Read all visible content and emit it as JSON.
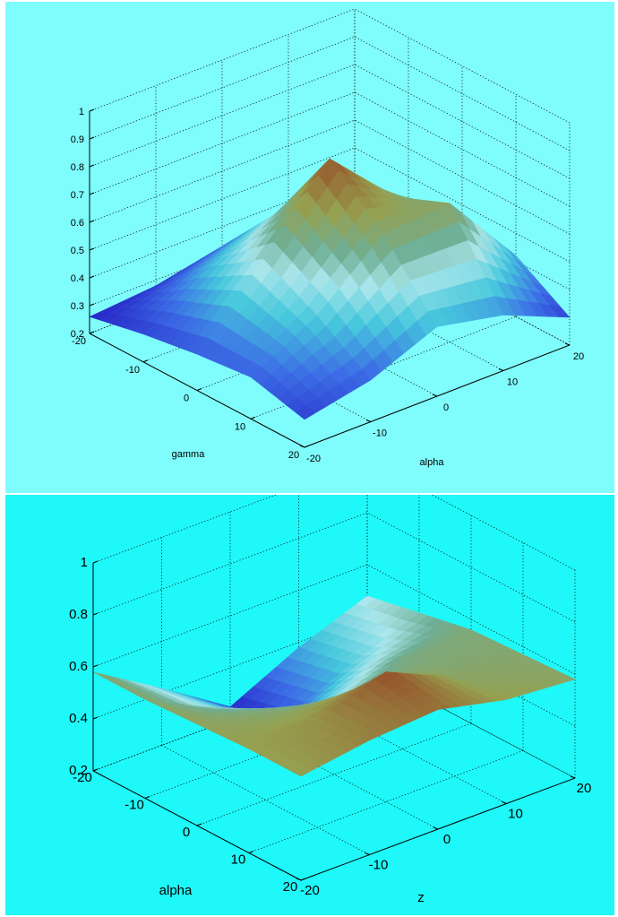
{
  "colors": {
    "top_panel_bg": "#7ffcfc",
    "bottom_panel_bg": "#1ef8f8"
  },
  "chart_data": [
    {
      "type": "surface",
      "xlabel": "gamma",
      "ylabel": "alpha",
      "zlabel": "",
      "xlim": [
        -20,
        20
      ],
      "ylim": [
        -20,
        20
      ],
      "zlim": [
        0.2,
        1
      ],
      "x_ticks": [
        "-20",
        "-10",
        "0",
        "10",
        "20"
      ],
      "y_ticks": [
        "-20",
        "-10",
        "0",
        "10",
        "20"
      ],
      "z_ticks": [
        "0.2",
        "0.3",
        "0.4",
        "0.5",
        "0.6",
        "0.7",
        "0.8",
        "0.9",
        "1"
      ],
      "grid": true,
      "colormap": "jet-shaded",
      "grid_x": [
        -20,
        -10,
        0,
        10,
        20
      ],
      "grid_y": [
        -20,
        -10,
        0,
        10,
        20
      ],
      "z": [
        [
          0.26,
          0.28,
          0.33,
          0.3,
          0.28
        ],
        [
          0.3,
          0.45,
          0.55,
          0.48,
          0.35
        ],
        [
          0.33,
          0.58,
          0.85,
          0.62,
          0.38
        ],
        [
          0.35,
          0.48,
          0.68,
          0.7,
          0.42
        ],
        [
          0.3,
          0.35,
          0.45,
          0.4,
          0.3
        ]
      ]
    },
    {
      "type": "surface",
      "xlabel": "alpha",
      "ylabel": "z",
      "zlabel": "",
      "xlim": [
        -20,
        20
      ],
      "ylim": [
        -20,
        20
      ],
      "zlim": [
        0.2,
        1
      ],
      "x_ticks": [
        "-20",
        "-10",
        "0",
        "10",
        "20"
      ],
      "y_ticks": [
        "-20",
        "-10",
        "0",
        "10",
        "20"
      ],
      "z_ticks": [
        "0.2",
        "0.4",
        "0.6",
        "0.8",
        "1"
      ],
      "grid": true,
      "colormap": "jet-shaded",
      "grid_x": [
        -20,
        -10,
        0,
        10,
        20
      ],
      "grid_y": [
        -20,
        -10,
        0,
        10,
        20
      ],
      "z": [
        [
          0.58,
          0.42,
          0.25,
          0.38,
          0.48
        ],
        [
          0.58,
          0.45,
          0.3,
          0.42,
          0.52
        ],
        [
          0.59,
          0.55,
          0.48,
          0.55,
          0.56
        ],
        [
          0.6,
          0.62,
          0.7,
          0.58,
          0.57
        ],
        [
          0.6,
          0.64,
          0.66,
          0.6,
          0.58
        ]
      ]
    }
  ]
}
